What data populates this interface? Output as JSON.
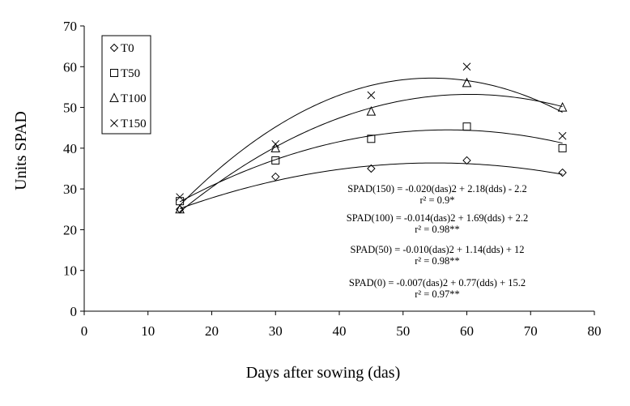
{
  "chart_data": {
    "type": "scatter",
    "title": "",
    "xlabel": "Days after sowing (das)",
    "ylabel": "Units SPAD",
    "xlim": [
      0,
      80
    ],
    "ylim": [
      0,
      70
    ],
    "xticks": [
      0,
      10,
      20,
      30,
      40,
      50,
      60,
      70,
      80
    ],
    "yticks": [
      0,
      10,
      20,
      30,
      40,
      50,
      60,
      70
    ],
    "x_tick_labels": [
      "0",
      "10",
      "20",
      "30",
      "40",
      "50",
      "60",
      "70",
      "80"
    ],
    "y_tick_labels": [
      "0",
      "10",
      "20",
      "30",
      "40",
      "50",
      "60",
      "70"
    ],
    "grid": false,
    "legend_position": "top-left",
    "x": [
      15,
      30,
      45,
      60,
      75
    ],
    "series": [
      {
        "name": "T0",
        "marker": "diamond",
        "values": [
          25,
          33,
          35,
          37,
          34
        ],
        "fit": {
          "a": -0.007,
          "b": 0.77,
          "c": 15.2
        }
      },
      {
        "name": "T50",
        "marker": "square",
        "values": [
          27,
          37,
          42.3,
          45.3,
          40
        ],
        "fit": {
          "a": -0.01,
          "b": 1.14,
          "c": 12
        }
      },
      {
        "name": "T100",
        "marker": "triangle",
        "values": [
          25,
          40,
          49,
          56,
          50
        ],
        "fit": {
          "a": -0.014,
          "b": 1.69,
          "c": 2.2
        }
      },
      {
        "name": "T150",
        "marker": "x",
        "values": [
          28,
          41,
          53,
          60,
          43
        ],
        "fit": {
          "a": -0.02,
          "b": 2.18,
          "c": -2.2
        }
      }
    ],
    "annotations": [
      {
        "equation": "SPAD(150) = -0.020(das)2 + 2.18(dds) - 2.2",
        "r2": "r² = 0.9*"
      },
      {
        "equation": "SPAD(100) = -0.014(das)2 + 1.69(dds) + 2.2",
        "r2": "r² = 0.98**"
      },
      {
        "equation": "SPAD(50) = -0.010(das)2 + 1.14(dds) + 12",
        "r2": "r² = 0.98**"
      },
      {
        "equation": "SPAD(0) = -0.007(das)2 + 0.77(dds) + 15.2",
        "r2": "r² = 0.97**"
      }
    ]
  }
}
